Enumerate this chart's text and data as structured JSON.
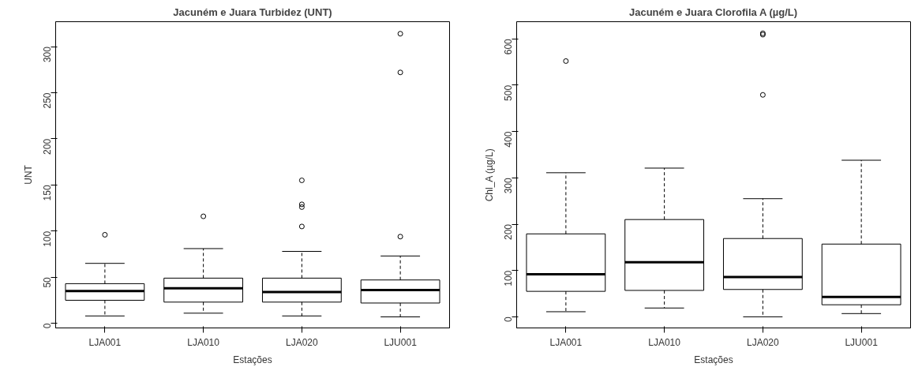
{
  "chart_data": [
    {
      "type": "box",
      "title": "Jacuném e Juara Turbidez (UNT)",
      "xlabel": "Estações",
      "ylabel": "UNT",
      "categories": [
        "LJA001",
        "LJA010",
        "LJA020",
        "LJU001"
      ],
      "boxes": [
        {
          "low": 8,
          "q1": 25,
          "median": 35,
          "q3": 43,
          "high": 65,
          "outliers": [
            96
          ]
        },
        {
          "low": 11,
          "q1": 23,
          "median": 38,
          "q3": 49,
          "high": 81,
          "outliers": [
            116
          ]
        },
        {
          "low": 8,
          "q1": 23,
          "median": 34,
          "q3": 49,
          "high": 78,
          "outliers": [
            105,
            126,
            129,
            155
          ]
        },
        {
          "low": 7,
          "q1": 22,
          "median": 36,
          "q3": 47,
          "high": 73,
          "outliers": [
            94,
            272,
            314
          ]
        }
      ],
      "ylim": [
        -5,
        327
      ],
      "yticks": [
        0,
        50,
        100,
        150,
        200,
        250,
        300
      ],
      "grid": false
    },
    {
      "type": "box",
      "title": "Jacuném e Juara Clorofila A (µg/L)",
      "xlabel": "Estações",
      "ylabel": "Chl_A (µg/L)",
      "categories": [
        "LJA001",
        "LJA010",
        "LJA020",
        "LJU001"
      ],
      "boxes": [
        {
          "low": 11,
          "q1": 55,
          "median": 92,
          "q3": 179,
          "high": 311,
          "outliers": [
            552
          ]
        },
        {
          "low": 19,
          "q1": 57,
          "median": 118,
          "q3": 210,
          "high": 321
        },
        {
          "low": 0,
          "q1": 59,
          "median": 86,
          "q3": 169,
          "high": 255,
          "outliers": [
            479,
            609,
            612
          ]
        },
        {
          "low": 7,
          "q1": 26,
          "median": 43,
          "q3": 157,
          "high": 338
        }
      ],
      "ylim": [
        -24,
        637
      ],
      "yticks": [
        0,
        100,
        200,
        300,
        400,
        500,
        600
      ],
      "grid": false
    }
  ]
}
